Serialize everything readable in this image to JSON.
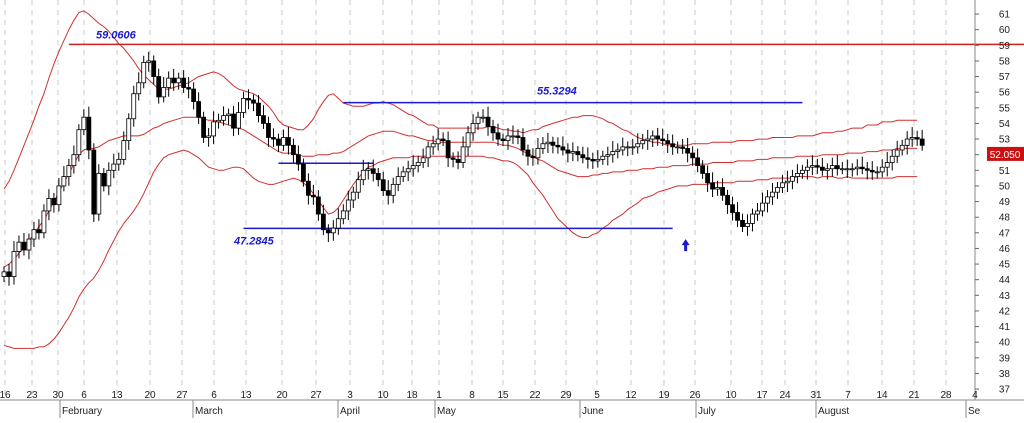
{
  "chart_data": {
    "type": "candlestick",
    "y_ticks": [
      37,
      38,
      39,
      40,
      41,
      42,
      43,
      44,
      45,
      46,
      47,
      48,
      49,
      50,
      51,
      52,
      53,
      54,
      55,
      56,
      57,
      58,
      59,
      60,
      61
    ],
    "ylim": [
      36.3,
      61.9
    ],
    "x_day_labels": [
      "16",
      "23",
      "30",
      "6",
      "13",
      "20",
      "27",
      "6",
      "13",
      "20",
      "27",
      "3",
      "10",
      "18",
      "1",
      "8",
      "15",
      "22",
      "29",
      "5",
      "12",
      "19",
      "26",
      "10",
      "17",
      "24",
      "31",
      "7",
      "14",
      "21",
      "28",
      "4"
    ],
    "month_labels": [
      "February",
      "March",
      "April",
      "May",
      "June",
      "July",
      "August",
      "Se"
    ],
    "last_price_label": "52.050",
    "annotations": [
      {
        "text": "59.0606",
        "value": 59.0606
      },
      {
        "text": "55.3294",
        "value": 55.3294
      },
      {
        "text": "47.2845",
        "value": 47.2845
      }
    ],
    "hlines": [
      {
        "value": 59.0606,
        "color": "#d02020",
        "from_index": 13,
        "to_index": 182
      },
      {
        "value": 55.3294,
        "color": "#1a1acc",
        "from_index": 68,
        "to_index": 160
      },
      {
        "value": 51.45,
        "color": "#1a1acc",
        "from_index": 55,
        "to_index": 74
      },
      {
        "value": 47.2845,
        "color": "#1a1acc",
        "from_index": 48,
        "to_index": 134
      }
    ],
    "bands_color": "#d03030",
    "up_color": "#ffffff",
    "down_color": "#000000",
    "arrow_index": 135,
    "arrow_color": "#1a1acc",
    "closes": [
      44.5,
      44.2,
      45.8,
      46.4,
      45.9,
      46.6,
      47.2,
      47.0,
      48.4,
      49.2,
      48.8,
      50.0,
      50.6,
      51.3,
      52.0,
      53.6,
      54.4,
      52.3,
      48.2,
      50.8,
      50.0,
      51.0,
      51.4,
      51.7,
      52.9,
      54.3,
      55.9,
      56.6,
      57.9,
      58.0,
      57.0,
      55.7,
      56.3,
      56.9,
      56.6,
      56.9,
      56.3,
      56.2,
      55.4,
      54.4,
      53.1,
      53.2,
      54.1,
      54.2,
      54.5,
      54.6,
      53.7,
      54.7,
      55.6,
      55.5,
      55.3,
      54.5,
      54.0,
      53.1,
      53.0,
      52.6,
      53.1,
      52.6,
      52.0,
      51.4,
      50.3,
      49.4,
      49.3,
      48.2,
      47.2,
      47.0,
      47.3,
      47.9,
      48.4,
      49.1,
      49.6,
      50.4,
      51.0,
      51.1,
      50.8,
      50.4,
      49.7,
      49.4,
      50.1,
      50.6,
      50.9,
      51.1,
      51.3,
      51.5,
      51.8,
      52.5,
      52.7,
      53.0,
      52.9,
      51.8,
      51.7,
      51.5,
      52.5,
      53.4,
      54.0,
      54.4,
      54.4,
      53.8,
      53.4,
      53.0,
      52.9,
      53.2,
      53.2,
      53.1,
      52.3,
      51.9,
      51.8,
      52.4,
      52.7,
      52.8,
      52.6,
      52.5,
      52.3,
      52.1,
      52.2,
      52.0,
      51.8,
      51.7,
      51.6,
      51.7,
      51.9,
      52.0,
      52.2,
      52.3,
      52.5,
      52.5,
      52.5,
      52.7,
      52.9,
      53.0,
      53.2,
      53.0,
      52.9,
      52.7,
      52.5,
      52.5,
      52.4,
      52.1,
      51.8,
      51.3,
      50.8,
      50.2,
      49.8,
      49.9,
      49.4,
      48.8,
      48.3,
      47.8,
      47.4,
      47.6,
      48.2,
      48.4,
      48.9,
      49.3,
      49.6,
      49.9,
      50.2,
      50.3,
      50.6,
      50.8,
      51.0,
      51.2,
      51.3,
      51.2,
      51.0,
      51.1,
      51.3,
      51.1,
      51.1,
      51.1,
      51.1,
      51.2,
      51.1,
      51.0,
      50.9,
      50.9,
      51.2,
      51.5,
      51.9,
      52.3,
      52.6,
      53.0,
      53.1,
      53.0,
      52.6
    ]
  },
  "mid_band": [
    44.8,
    45.0,
    45.3,
    45.7,
    46.1,
    46.5,
    46.9,
    47.4,
    47.8,
    48.4,
    49.0,
    49.6,
    50.2,
    50.8,
    51.4,
    52.0,
    52.3,
    52.4,
    52.4,
    52.5,
    52.7,
    52.9,
    53.0,
    53.1,
    53.2,
    53.2,
    53.2,
    53.2,
    53.3,
    53.5,
    53.7,
    53.8,
    54.0,
    54.1,
    54.2,
    54.3,
    54.4,
    54.4,
    54.4,
    54.4,
    54.3,
    54.2,
    54.2,
    54.1,
    54.0,
    53.9,
    53.8,
    53.7,
    53.6,
    53.4,
    53.2,
    53.0,
    52.8,
    52.6,
    52.4,
    52.2,
    52.1,
    52.1,
    52.1,
    52.0,
    51.9,
    51.9,
    51.9,
    52.0,
    52.0,
    52.0,
    52.1,
    52.1,
    52.2,
    52.4,
    52.6,
    52.8,
    53.0,
    53.2,
    53.3,
    53.4,
    53.5,
    53.5,
    53.5,
    53.4,
    53.3,
    53.2,
    53.2,
    53.1,
    53.0,
    52.9,
    52.9,
    52.8,
    52.8,
    52.8,
    52.8,
    52.8,
    52.8,
    52.8,
    52.8,
    52.8,
    52.8,
    52.8,
    52.8,
    52.7,
    52.6,
    52.6,
    52.5,
    52.4,
    52.2,
    52.1,
    51.9,
    51.7,
    51.6,
    51.4,
    51.2,
    51.0,
    50.9,
    50.8,
    50.7,
    50.6,
    50.6,
    50.6,
    50.7,
    50.7,
    50.8,
    50.8,
    50.9,
    50.9,
    50.9,
    51.0,
    51.0,
    51.0,
    51.1,
    51.1,
    51.1,
    51.2,
    51.2,
    51.2,
    51.3,
    51.3,
    51.3,
    51.3,
    51.4,
    51.4,
    51.4,
    51.4,
    51.5,
    51.5,
    51.5,
    51.5,
    51.5,
    51.6,
    51.6,
    51.6,
    51.6,
    51.7,
    51.7,
    51.7,
    51.8,
    51.8,
    51.8,
    51.8,
    51.8,
    51.9,
    51.9,
    51.9,
    51.9,
    51.9,
    52.0,
    52.0,
    52.0,
    52.0,
    52.0,
    52.1,
    52.1,
    52.1,
    52.1,
    52.2,
    52.2,
    52.2,
    52.3,
    52.3,
    52.3,
    52.4,
    52.4,
    52.4,
    52.4,
    52.4,
    52.4,
    52.4,
    52.4,
    52.3
  ],
  "band_width": [
    5.0,
    5.3,
    5.7,
    6.1,
    6.5,
    6.9,
    7.3,
    7.7,
    8.1,
    8.5,
    8.8,
    9.0,
    9.1,
    9.2,
    9.2,
    9.1,
    8.9,
    8.6,
    8.3,
    7.9,
    7.5,
    7.0,
    6.5,
    6.0,
    5.6,
    5.2,
    4.8,
    4.3,
    3.8,
    3.3,
    2.8,
    2.4,
    2.2,
    2.1,
    2.1,
    2.1,
    2.1,
    2.2,
    2.4,
    2.6,
    2.8,
    3.0,
    3.1,
    3.1,
    3.0,
    2.8,
    2.6,
    2.5,
    2.5,
    2.6,
    2.7,
    2.7,
    2.6,
    2.5,
    2.3,
    2.0,
    1.8,
    1.7,
    1.6,
    1.6,
    1.7,
    2.0,
    2.4,
    2.9,
    3.4,
    3.8,
    3.8,
    3.5,
    3.1,
    2.8,
    2.5,
    2.3,
    2.1,
    2.0,
    2.0,
    1.9,
    1.9,
    1.8,
    1.7,
    1.6,
    1.5,
    1.4,
    1.3,
    1.2,
    1.1,
    1.0,
    1.0,
    0.9,
    0.9,
    0.9,
    0.9,
    0.9,
    0.9,
    0.9,
    0.9,
    0.9,
    0.9,
    1.0,
    1.0,
    1.0,
    1.0,
    1.0,
    1.0,
    1.1,
    1.2,
    1.4,
    1.7,
    1.9,
    2.2,
    2.5,
    2.8,
    3.1,
    3.3,
    3.5,
    3.7,
    3.8,
    3.9,
    3.9,
    3.8,
    3.7,
    3.5,
    3.3,
    3.1,
    2.9,
    2.7,
    2.5,
    2.3,
    2.1,
    1.9,
    1.8,
    1.7,
    1.6,
    1.5,
    1.4,
    1.4,
    1.3,
    1.3,
    1.3,
    1.3,
    1.3,
    1.3,
    1.3,
    1.3,
    1.3,
    1.3,
    1.3,
    1.3,
    1.3,
    1.3,
    1.3,
    1.3,
    1.3,
    1.3,
    1.3,
    1.3,
    1.3,
    1.3,
    1.3,
    1.3,
    1.3,
    1.3,
    1.3,
    1.3,
    1.4,
    1.4,
    1.4,
    1.4,
    1.5,
    1.5,
    1.5,
    1.6,
    1.6,
    1.6,
    1.7,
    1.7,
    1.7,
    1.8,
    1.8,
    1.8,
    1.8,
    1.8,
    1.8,
    1.8,
    1.8
  ]
}
